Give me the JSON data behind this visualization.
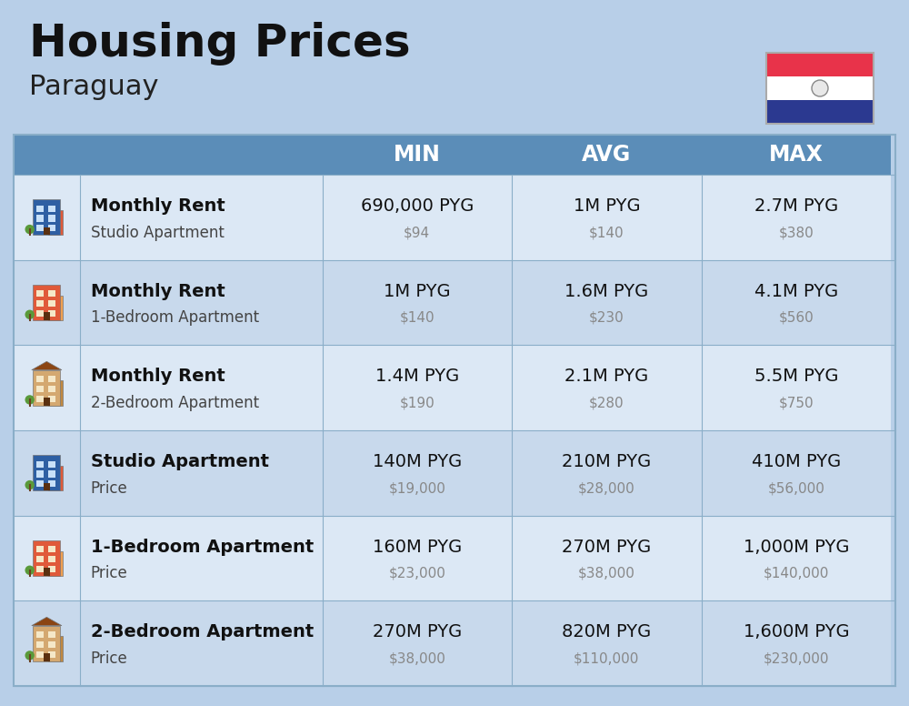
{
  "title": "Housing Prices",
  "subtitle": "Paraguay",
  "background_color": "#b8cfe8",
  "header_bg_color": "#5b8db8",
  "header_text_color": "#ffffff",
  "row_bg_color_1": "#dce8f5",
  "row_bg_color_2": "#c8d9ec",
  "cell_border_color": "#8aaec8",
  "col_headers": [
    "MIN",
    "AVG",
    "MAX"
  ],
  "rows": [
    {
      "bold_label": "Monthly Rent",
      "sub_label": "Studio Apartment",
      "min_pyg": "690,000 PYG",
      "min_usd": "$94",
      "avg_pyg": "1M PYG",
      "avg_usd": "$140",
      "max_pyg": "2.7M PYG",
      "max_usd": "$380"
    },
    {
      "bold_label": "Monthly Rent",
      "sub_label": "1-Bedroom Apartment",
      "min_pyg": "1M PYG",
      "min_usd": "$140",
      "avg_pyg": "1.6M PYG",
      "avg_usd": "$230",
      "max_pyg": "4.1M PYG",
      "max_usd": "$560"
    },
    {
      "bold_label": "Monthly Rent",
      "sub_label": "2-Bedroom Apartment",
      "min_pyg": "1.4M PYG",
      "min_usd": "$190",
      "avg_pyg": "2.1M PYG",
      "avg_usd": "$280",
      "max_pyg": "5.5M PYG",
      "max_usd": "$750"
    },
    {
      "bold_label": "Studio Apartment",
      "sub_label": "Price",
      "min_pyg": "140M PYG",
      "min_usd": "$19,000",
      "avg_pyg": "210M PYG",
      "avg_usd": "$28,000",
      "max_pyg": "410M PYG",
      "max_usd": "$56,000"
    },
    {
      "bold_label": "1-Bedroom Apartment",
      "sub_label": "Price",
      "min_pyg": "160M PYG",
      "min_usd": "$23,000",
      "avg_pyg": "270M PYG",
      "avg_usd": "$38,000",
      "max_pyg": "1,000M PYG",
      "max_usd": "$140,000"
    },
    {
      "bold_label": "2-Bedroom Apartment",
      "sub_label": "Price",
      "min_pyg": "270M PYG",
      "min_usd": "$38,000",
      "avg_pyg": "820M PYG",
      "avg_usd": "$110,000",
      "max_pyg": "1,600M PYG",
      "max_usd": "$230,000"
    }
  ],
  "flag_colors": [
    "#e8334a",
    "#ffffff",
    "#2b3990"
  ],
  "building_configs": [
    {
      "body": "#2e5fa3",
      "accent": "#e05a3a",
      "roof": false
    },
    {
      "body": "#e05a3a",
      "accent": "#f0a050",
      "roof": false
    },
    {
      "body": "#d4a870",
      "accent": "#c08840",
      "roof": true
    },
    {
      "body": "#2e5fa3",
      "accent": "#e05a3a",
      "roof": false
    },
    {
      "body": "#e05a3a",
      "accent": "#f0a050",
      "roof": false
    },
    {
      "body": "#d4a870",
      "accent": "#c08840",
      "roof": true
    }
  ]
}
